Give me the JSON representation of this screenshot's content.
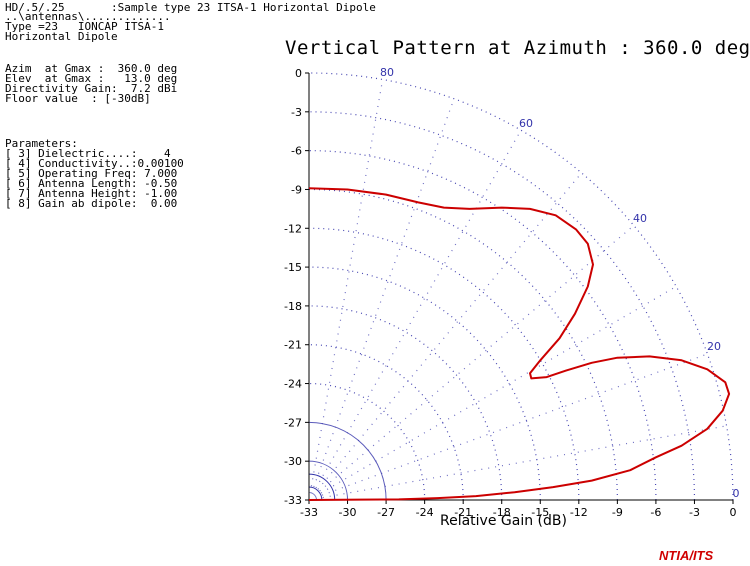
{
  "header": {
    "line1": "HD/.5/.25       :Sample type 23 ITSA-1 Horizontal Dipole",
    "line2": "..\\antennas\\.............",
    "line3": "Type =23   IONCAP ITSA-1",
    "line4": "Horizontal Dipole"
  },
  "summary": {
    "azim": "Azim  at Gmax :  360.0 deg",
    "elev": "Elev  at Gmax :   13.0 deg",
    "gain": "Directivity Gain:  7.2 dBi",
    "floor": "Floor value  : [-30dB]"
  },
  "parameters": {
    "heading": "Parameters:",
    "items": [
      "[ 3] Dielectric....:    4",
      "[ 4] Conductivity..:0.00100",
      "[ 5] Operating Freq: 7.000",
      "[ 6] Antenna Length: -0.50",
      "[ 7] Antenna Height: -1.00",
      "[ 8] Gain ab dipole:  0.00"
    ]
  },
  "logo": "NTIA/ITS",
  "colors": {
    "pattern": "#cc0000",
    "grid": "#3333aa",
    "axis": "#000000",
    "logo": "#d00000"
  },
  "chart_data": {
    "type": "line",
    "title": "Vertical Pattern at Azimuth : 360.0 deg",
    "xlabel": "Relative Gain (dB)",
    "ylabel": "",
    "x_ticks": [
      "-33",
      "-30",
      "-27",
      "-24",
      "-21",
      "-18",
      "-15",
      "-12",
      "-9",
      "-6",
      "-3",
      "0"
    ],
    "y_ticks": [
      "0",
      "-3",
      "-6",
      "-9",
      "-12",
      "-15",
      "-18",
      "-21",
      "-24",
      "-27",
      "-30",
      "-33"
    ],
    "elevation_labels": [
      "80",
      "60",
      "40",
      "20",
      "0"
    ],
    "xlim": [
      -33,
      0
    ],
    "ylim": [
      -33,
      0
    ],
    "series": [
      {
        "points": [
          [
            -33,
            -33.0
          ],
          [
            -29,
            -32.97
          ],
          [
            -26,
            -32.95
          ],
          [
            -23,
            -32.85
          ],
          [
            -20,
            -32.7
          ],
          [
            -17,
            -32.4
          ],
          [
            -14,
            -32.0
          ],
          [
            -11,
            -31.5
          ],
          [
            -8,
            -30.7
          ],
          [
            -6,
            -29.7
          ],
          [
            -4,
            -28.8
          ],
          [
            -2,
            -27.5
          ],
          [
            -0.8,
            -26.1
          ],
          [
            -0.3,
            -24.8
          ],
          [
            -0.6,
            -23.9
          ],
          [
            -2.0,
            -22.9
          ],
          [
            -4.0,
            -22.2
          ],
          [
            -6.5,
            -21.9
          ],
          [
            -9.0,
            -22.0
          ],
          [
            -11.0,
            -22.4
          ],
          [
            -13.0,
            -23.0
          ],
          [
            -14.5,
            -23.5
          ],
          [
            -15.7,
            -23.6
          ],
          [
            -15.8,
            -23.2
          ],
          [
            -15.0,
            -22.2
          ],
          [
            -13.5,
            -20.5
          ],
          [
            -12.3,
            -18.6
          ],
          [
            -11.3,
            -16.5
          ],
          [
            -10.9,
            -14.8
          ],
          [
            -11.3,
            -13.2
          ],
          [
            -12.2,
            -12.1
          ],
          [
            -13.8,
            -11.0
          ],
          [
            -15.8,
            -10.5
          ],
          [
            -18.0,
            -10.4
          ],
          [
            -20.5,
            -10.5
          ],
          [
            -22.5,
            -10.4
          ],
          [
            -24.5,
            -10.0
          ],
          [
            -27.0,
            -9.4
          ],
          [
            -30.0,
            -9.0
          ],
          [
            -33.0,
            -8.9
          ]
        ]
      }
    ],
    "grid": true
  }
}
